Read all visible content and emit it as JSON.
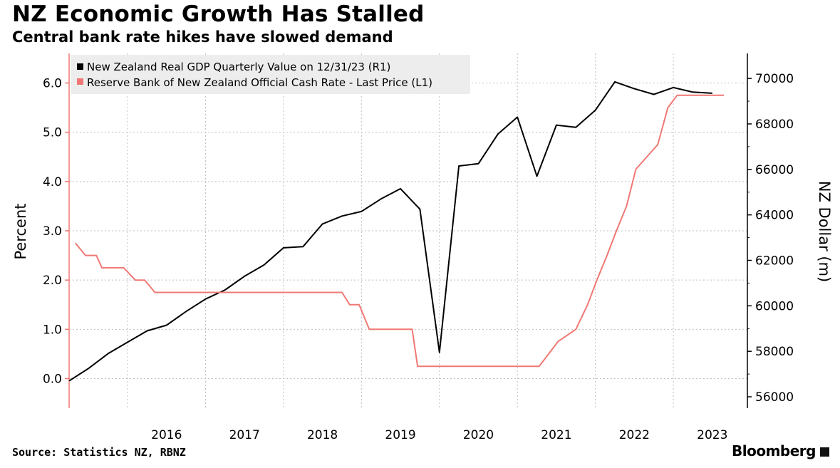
{
  "header": {
    "title": "NZ Economic Growth Has Stalled",
    "subtitle": "Central bank rate hikes have slowed demand"
  },
  "footer": {
    "source": "Source: Statistics NZ, RBNZ",
    "brand": "Bloomberg"
  },
  "chart_data": {
    "type": "line",
    "title": "NZ Economic Growth Has Stalled",
    "subtitle": "Central bank rate hikes have slowed demand",
    "xlabel": "",
    "y_left_label": "Percent",
    "y_right_label": "NZ Dollar (m)",
    "y_left_ticks": [
      "0.0",
      "1.0",
      "2.0",
      "3.0",
      "4.0",
      "5.0",
      "6.0"
    ],
    "y_left_lim": [
      -0.6,
      6.6
    ],
    "y_right_ticks": [
      "56000",
      "58000",
      "60000",
      "62000",
      "64000",
      "66000",
      "68000",
      "70000"
    ],
    "y_right_lim": [
      55500,
      71100
    ],
    "x_ticks": [
      "2016",
      "2017",
      "2018",
      "2019",
      "2020",
      "2021",
      "2022",
      "2023"
    ],
    "x_lim": [
      2015.25,
      2023.95
    ],
    "grid": true,
    "legend": "top-left",
    "series": [
      {
        "name": "New Zealand Real GDP Quarterly Value on 12/31/23 (R1)",
        "axis": "right",
        "color": "#000000",
        "points": [
          [
            2015.25,
            56700
          ],
          [
            2015.5,
            57250
          ],
          [
            2015.75,
            57900
          ],
          [
            2016.0,
            58400
          ],
          [
            2016.25,
            58900
          ],
          [
            2016.5,
            59150
          ],
          [
            2016.75,
            59750
          ],
          [
            2017.0,
            60300
          ],
          [
            2017.25,
            60700
          ],
          [
            2017.5,
            61300
          ],
          [
            2017.75,
            61800
          ],
          [
            2018.0,
            62550
          ],
          [
            2018.25,
            62600
          ],
          [
            2018.5,
            63600
          ],
          [
            2018.75,
            63950
          ],
          [
            2019.0,
            64150
          ],
          [
            2019.25,
            64700
          ],
          [
            2019.5,
            65150
          ],
          [
            2019.75,
            64250
          ],
          [
            2020.0,
            57950
          ],
          [
            2020.25,
            66150
          ],
          [
            2020.5,
            66250
          ],
          [
            2020.75,
            67550
          ],
          [
            2021.0,
            68300
          ],
          [
            2021.25,
            65700
          ],
          [
            2021.5,
            67950
          ],
          [
            2021.75,
            67850
          ],
          [
            2022.0,
            68600
          ],
          [
            2022.25,
            69850
          ],
          [
            2022.5,
            69550
          ],
          [
            2022.75,
            69300
          ],
          [
            2023.0,
            69600
          ],
          [
            2023.25,
            69400
          ],
          [
            2023.5,
            69350
          ]
        ]
      },
      {
        "name": "Reserve Bank of New Zealand Official Cash Rate - Last Price (L1)",
        "axis": "left",
        "color": "#f07874",
        "points": [
          [
            2015.33,
            2.75
          ],
          [
            2015.46,
            2.5
          ],
          [
            2015.6,
            2.5
          ],
          [
            2015.67,
            2.25
          ],
          [
            2015.95,
            2.25
          ],
          [
            2016.1,
            2.0
          ],
          [
            2016.22,
            2.0
          ],
          [
            2016.35,
            1.75
          ],
          [
            2016.6,
            1.75
          ],
          [
            2018.2,
            1.75
          ],
          [
            2018.2,
            1.75
          ],
          [
            2018.75,
            1.75
          ],
          [
            2018.85,
            1.5
          ],
          [
            2018.97,
            1.5
          ],
          [
            2019.1,
            1.0
          ],
          [
            2019.65,
            1.0
          ],
          [
            2019.72,
            0.25
          ],
          [
            2021.28,
            0.25
          ],
          [
            2021.52,
            0.75
          ],
          [
            2021.75,
            1.0
          ],
          [
            2021.9,
            1.5
          ],
          [
            2022.02,
            2.0
          ],
          [
            2022.15,
            2.5
          ],
          [
            2022.27,
            3.0
          ],
          [
            2022.4,
            3.5
          ],
          [
            2022.52,
            4.25
          ],
          [
            2022.8,
            4.75
          ],
          [
            2022.93,
            5.5
          ],
          [
            2023.05,
            5.75
          ],
          [
            2023.65,
            5.75
          ]
        ]
      }
    ]
  }
}
